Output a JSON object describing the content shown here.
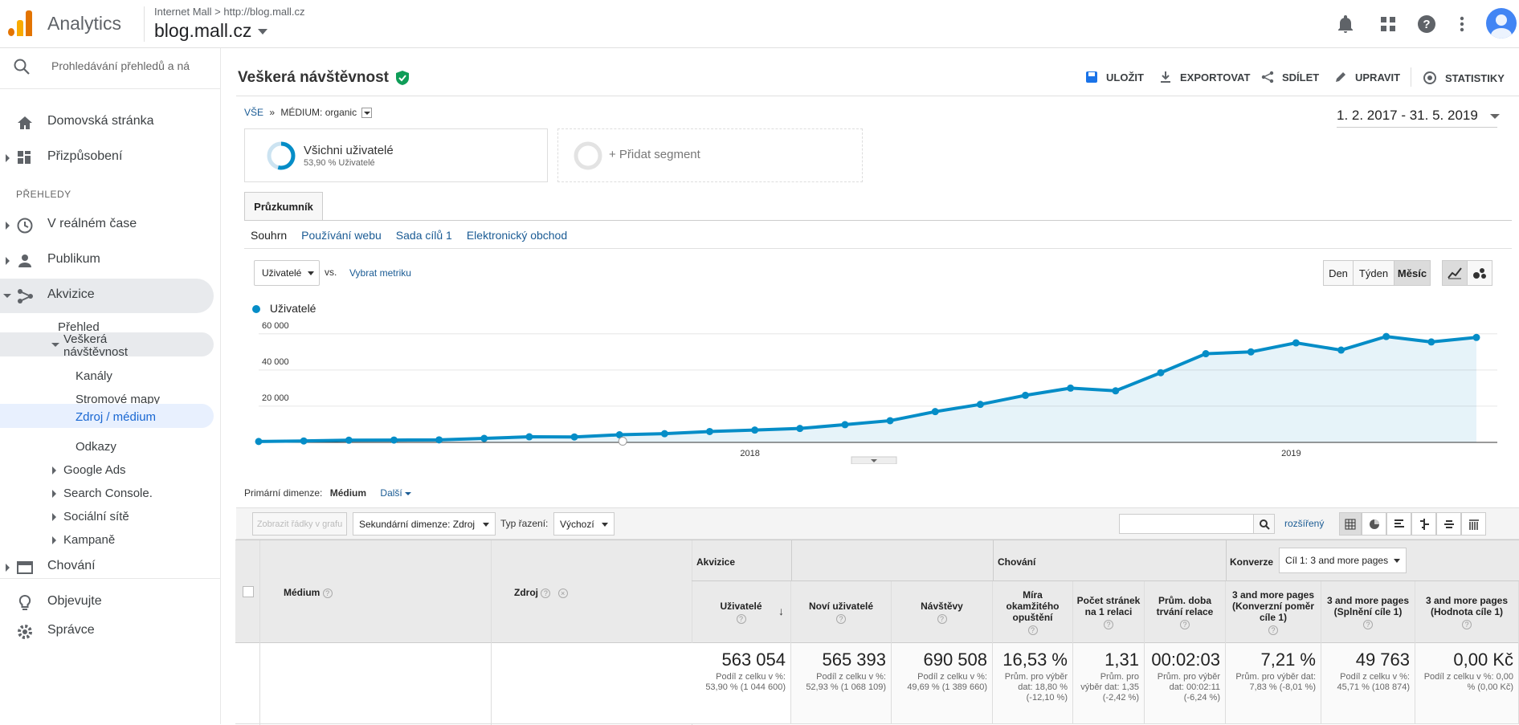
{
  "app": {
    "title": "Analytics",
    "account": "Internet Mall",
    "url": "http://blog.mall.cz",
    "property": "blog.mall.cz"
  },
  "colors": {
    "accent": "#058dc7",
    "logo_orange": "#f9ab00",
    "logo_dark_orange": "#e37400",
    "link": "#1a73e8"
  },
  "sidebar": {
    "search_placeholder": "Prohledávání přehledů a ná",
    "home": "Domovská stránka",
    "customization": "Přizpůsobení",
    "reports_header": "PŘEHLEDY",
    "realtime": "V reálném čase",
    "audience": "Publikum",
    "acquisition": "Akvizice",
    "overview": "Přehled",
    "all_traffic": "Veškerá návštěvnost",
    "channels": "Kanály",
    "treemaps": "Stromové mapy",
    "source_medium": "Zdroj / médium",
    "referrals": "Odkazy",
    "google_ads": "Google Ads",
    "search_console": "Search Console.",
    "social": "Sociální sítě",
    "campaigns": "Kampaně",
    "behavior": "Chování",
    "discover": "Objevujte",
    "admin": "Správce"
  },
  "header": {
    "title": "Veškerá návštěvnost",
    "save": "ULOŽIT",
    "export": "EXPORTOVAT",
    "share": "SDÍLET",
    "edit": "UPRAVIT",
    "insights": "STATISTIKY"
  },
  "filter": {
    "all": "VŠE",
    "sep": "»",
    "dimension": "MÉDIUM:",
    "value": "organic"
  },
  "date_range": "1. 2. 2017 - 31. 5. 2019",
  "segments": {
    "all_users": "Všichni uživatelé",
    "all_users_pct": "53,90 % Uživatelé",
    "add": "+ Přidat segment"
  },
  "explorer": {
    "tab": "Průzkumník",
    "subtabs": [
      "Souhrn",
      "Používání webu",
      "Sada cílů 1",
      "Elektronický obchod"
    ]
  },
  "chart_controls": {
    "metric": "Uživatelé",
    "vs": "vs.",
    "select_metric": "Vybrat metriku",
    "day": "Den",
    "week": "Týden",
    "month": "Měsíc"
  },
  "chart_data": {
    "type": "area",
    "series": [
      {
        "name": "Uživatelé",
        "values": [
          500,
          800,
          1200,
          1300,
          1400,
          2200,
          3100,
          3000,
          4200,
          4800,
          6000,
          6800,
          7700,
          9800,
          12000,
          17000,
          21000,
          26000,
          30000,
          28500,
          38500,
          49000,
          50000,
          55000,
          51000,
          58500,
          55500,
          58000
        ]
      }
    ],
    "yticks": [
      "60 000",
      "40 000",
      "20 000"
    ],
    "ylim": [
      0,
      60000
    ],
    "xlabels": [
      "2018",
      "2019"
    ],
    "legend": "Uživatelé"
  },
  "dimensions": {
    "primary_label": "Primární dimenze:",
    "primary_value": "Médium",
    "more": "Další"
  },
  "toolbar2": {
    "plot_rows": "Zobrazit řádky v grafu",
    "secondary": "Sekundární dimenze: Zdroj",
    "sort_label": "Typ řazení:",
    "sort_value": "Výchozí",
    "advanced": "rozšířený"
  },
  "table": {
    "col_medium": "Médium",
    "col_source": "Zdroj",
    "group_acq": "Akvizice",
    "group_beh": "Chování",
    "group_conv": "Konverze",
    "goal_select": "Cíl 1: 3 and more pages",
    "cols": [
      {
        "h": "Uživatelé",
        "v": "563 054",
        "s": "Podíl z celku v %: 53,90 % (1 044 600)"
      },
      {
        "h": "Noví uživatelé",
        "v": "565 393",
        "s": "Podíl z celku v %: 52,93 % (1 068 109)"
      },
      {
        "h": "Návštěvy",
        "v": "690 508",
        "s": "Podíl z celku v %: 49,69 % (1 389 660)"
      },
      {
        "h": "Míra okamžitého opuštění",
        "v": "16,53 %",
        "s": "Prům. pro výběr dat: 18,80 % (-12,10 %)"
      },
      {
        "h": "Počet stránek na 1 relaci",
        "v": "1,31",
        "s": "Prům. pro výběr dat: 1,35 (-2,42 %)"
      },
      {
        "h": "Prům. doba trvání relace",
        "v": "00:02:03",
        "s": "Prům. pro výběr dat: 00:02:11 (-6,24 %)"
      },
      {
        "h": "3 and more pages (Konverzní poměr cíle 1)",
        "v": "7,21 %",
        "s": "Prům. pro výběr dat: 7,83 % (-8,01 %)"
      },
      {
        "h": "3 and more pages (Splnění cíle 1)",
        "v": "49 763",
        "s": "Podíl z celku v %: 45,71 % (108 874)"
      },
      {
        "h": "3 and more pages (Hodnota cíle 1)",
        "v": "0,00 Kč",
        "s": "Podíl z celku v %: 0,00 % (0,00 Kč)"
      }
    ]
  }
}
